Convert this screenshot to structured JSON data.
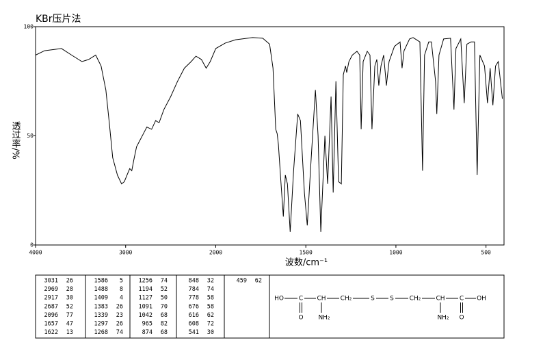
{
  "chart_data": {
    "type": "line",
    "title": "KBr压片法",
    "xlabel": "波数/cm⁻¹",
    "ylabel": "透过率/%",
    "x": [
      4000,
      3900,
      3712,
      3600,
      3485,
      3410,
      3333,
      3273,
      3220,
      3182,
      3144,
      3091,
      3045,
      3015,
      2985,
      2955,
      2932,
      2909,
      2879,
      2841,
      2803,
      2765,
      2712,
      2667,
      2629,
      2576,
      2500,
      2424,
      2348,
      2273,
      2220,
      2159,
      2106,
      2061,
      2000,
      1947,
      1890,
      1795,
      1739,
      1701,
      1682,
      1667,
      1659,
      1652,
      1640,
      1625,
      1614,
      1602,
      1587,
      1568,
      1545,
      1530,
      1508,
      1492,
      1470,
      1447,
      1432,
      1417,
      1394,
      1379,
      1360,
      1348,
      1333,
      1318,
      1303,
      1292,
      1280,
      1273,
      1261,
      1242,
      1216,
      1201,
      1193,
      1182,
      1159,
      1144,
      1133,
      1117,
      1106,
      1095,
      1083,
      1068,
      1053,
      1038,
      1008,
      977,
      966,
      955,
      924,
      905,
      886,
      867,
      852,
      841,
      818,
      803,
      780,
      773,
      761,
      735,
      697,
      678,
      667,
      640,
      621,
      606,
      583,
      564,
      549,
      534,
      508,
      492,
      477,
      462,
      447,
      432,
      409
    ],
    "values": [
      87,
      89,
      90,
      87,
      84,
      85,
      87,
      82,
      71,
      56,
      40,
      32,
      28,
      29,
      32,
      35,
      34,
      39,
      45,
      48,
      51,
      54,
      53,
      57,
      56,
      62,
      68,
      75,
      81,
      84,
      86.5,
      85,
      81,
      84,
      90,
      92.5,
      94,
      95,
      94.7,
      92,
      81,
      53,
      51,
      46,
      31,
      13,
      32,
      28,
      6,
      34,
      60,
      57,
      24,
      9,
      40,
      71,
      50,
      6,
      50,
      28,
      68,
      24,
      75,
      29,
      28,
      78,
      82,
      79,
      84,
      87,
      88.7,
      87,
      53,
      84,
      88.7,
      87,
      53,
      82,
      85,
      73,
      82,
      87,
      73,
      84,
      91,
      93,
      81,
      89,
      94.4,
      95,
      94,
      93,
      34,
      87,
      93,
      93,
      75,
      60,
      87,
      94.4,
      94.7,
      62,
      90,
      94.4,
      65,
      92,
      93,
      93,
      32,
      87,
      82,
      65,
      81,
      64,
      82,
      84,
      67
    ],
    "color": "#000000",
    "xlim": [
      4000,
      400
    ],
    "x_scale_break": 2000,
    "x_scale_factor": 2,
    "xticks": [
      4000,
      3000,
      2000,
      1500,
      1000,
      500
    ],
    "ylim": [
      0,
      100
    ],
    "yticks": [
      0,
      50,
      100
    ]
  },
  "peak_table": {
    "columns": [
      [
        [
          3031,
          26
        ],
        [
          2969,
          28
        ],
        [
          2917,
          30
        ],
        [
          2687,
          52
        ],
        [
          2096,
          77
        ],
        [
          1657,
          47
        ],
        [
          1622,
          13
        ]
      ],
      [
        [
          1586,
          5
        ],
        [
          1488,
          8
        ],
        [
          1409,
          4
        ],
        [
          1383,
          26
        ],
        [
          1339,
          23
        ],
        [
          1297,
          26
        ],
        [
          1268,
          74
        ]
      ],
      [
        [
          1256,
          74
        ],
        [
          1194,
          52
        ],
        [
          1127,
          50
        ],
        [
          1091,
          70
        ],
        [
          1042,
          68
        ],
        [
          965,
          82
        ],
        [
          874,
          68
        ]
      ],
      [
        [
          848,
          32
        ],
        [
          784,
          74
        ],
        [
          778,
          58
        ],
        [
          676,
          58
        ],
        [
          616,
          62
        ],
        [
          608,
          72
        ],
        [
          541,
          30
        ]
      ],
      [
        [
          459,
          62
        ]
      ]
    ]
  },
  "structure": {
    "chain": [
      "HO",
      "C",
      "CH",
      "CH₂",
      "S",
      "S",
      "CH₂",
      "CH",
      "C",
      "OH"
    ],
    "below": [
      "O",
      "NH₂",
      "NH₂",
      "O"
    ]
  }
}
